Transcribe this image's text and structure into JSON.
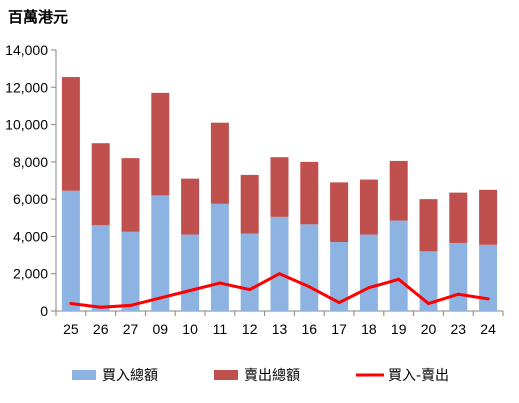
{
  "chart_data": {
    "type": "bar",
    "title": "百萬港元",
    "categories": [
      "25",
      "26",
      "27",
      "09",
      "10",
      "11",
      "12",
      "13",
      "16",
      "17",
      "18",
      "19",
      "20",
      "23",
      "24"
    ],
    "ylim": [
      0,
      14000
    ],
    "yticks": [
      "0",
      "2,000",
      "4,000",
      "6,000",
      "8,000",
      "10,000",
      "12,000",
      "14,000"
    ],
    "stacked": true,
    "grid": false,
    "legend_position": "bottom",
    "series": [
      {
        "name": "買入總額",
        "kind": "bar",
        "color": "#8DB3E2",
        "values": [
          6450,
          4600,
          4250,
          6200,
          4100,
          5750,
          4150,
          5050,
          4650,
          3700,
          4100,
          4850,
          3200,
          3650,
          3550
        ]
      },
      {
        "name": "賣出總額",
        "kind": "bar",
        "color": "#C0504D",
        "values": [
          6100,
          4400,
          3950,
          5500,
          3000,
          4350,
          3150,
          3200,
          3350,
          3200,
          2950,
          3200,
          2800,
          2700,
          2950
        ]
      },
      {
        "name": "買入-賣出",
        "kind": "line",
        "color": "#FF0000",
        "values": [
          400,
          200,
          300,
          700,
          1100,
          1500,
          1150,
          2000,
          1300,
          450,
          1250,
          1700,
          400,
          900,
          650
        ]
      }
    ]
  }
}
